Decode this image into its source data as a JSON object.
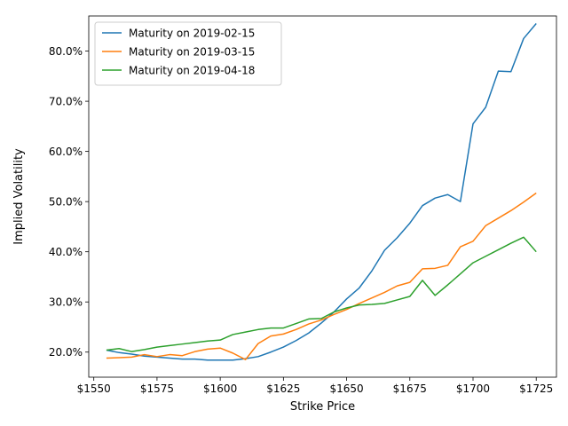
{
  "chart_data": {
    "type": "line",
    "title": "",
    "xlabel": "Strike Price",
    "ylabel": "Implied Volatility",
    "xlim": [
      1548,
      1733
    ],
    "ylim": [
      0.15,
      0.87
    ],
    "x_ticks": [
      1550,
      1575,
      1600,
      1625,
      1650,
      1675,
      1700,
      1725
    ],
    "x_tick_labels": [
      "$1550",
      "$1575",
      "$1600",
      "$1625",
      "$1650",
      "$1675",
      "$1700",
      "$1725"
    ],
    "y_ticks": [
      0.2,
      0.3,
      0.4,
      0.5,
      0.6,
      0.7,
      0.8
    ],
    "y_tick_labels": [
      "20.0%",
      "30.0%",
      "40.0%",
      "50.0%",
      "60.0%",
      "70.0%",
      "80.0%"
    ],
    "grid": false,
    "legend_position": "top-left",
    "series": [
      {
        "name": "Maturity on 2019-02-15",
        "color": "#1f77b4",
        "x": [
          1555,
          1560,
          1565,
          1570,
          1575,
          1580,
          1585,
          1590,
          1595,
          1600,
          1605,
          1610,
          1615,
          1620,
          1625,
          1630,
          1635,
          1640,
          1645,
          1650,
          1655,
          1660,
          1665,
          1670,
          1675,
          1680,
          1685,
          1690,
          1695,
          1700,
          1705,
          1710,
          1715,
          1720,
          1725
        ],
        "y": [
          0.204,
          0.199,
          0.196,
          0.192,
          0.19,
          0.188,
          0.186,
          0.186,
          0.184,
          0.184,
          0.184,
          0.187,
          0.191,
          0.2,
          0.21,
          0.223,
          0.238,
          0.258,
          0.28,
          0.306,
          0.328,
          0.362,
          0.403,
          0.428,
          0.457,
          0.492,
          0.507,
          0.514,
          0.5,
          0.655,
          0.688,
          0.76,
          0.759,
          0.825,
          0.855
        ]
      },
      {
        "name": "Maturity on 2019-03-15",
        "color": "#ff7f0e",
        "x": [
          1555,
          1560,
          1565,
          1570,
          1575,
          1580,
          1585,
          1590,
          1595,
          1600,
          1605,
          1610,
          1615,
          1620,
          1625,
          1630,
          1635,
          1640,
          1645,
          1650,
          1655,
          1660,
          1665,
          1670,
          1675,
          1680,
          1685,
          1690,
          1695,
          1700,
          1705,
          1710,
          1715,
          1720,
          1725
        ],
        "y": [
          0.188,
          0.189,
          0.19,
          0.195,
          0.191,
          0.195,
          0.193,
          0.201,
          0.206,
          0.208,
          0.198,
          0.185,
          0.217,
          0.232,
          0.236,
          0.245,
          0.256,
          0.264,
          0.275,
          0.285,
          0.297,
          0.308,
          0.319,
          0.332,
          0.339,
          0.366,
          0.367,
          0.373,
          0.41,
          0.421,
          0.452,
          0.467,
          0.482,
          0.499,
          0.517
        ]
      },
      {
        "name": "Maturity on 2019-04-18",
        "color": "#2ca02c",
        "x": [
          1555,
          1560,
          1565,
          1570,
          1575,
          1580,
          1585,
          1590,
          1595,
          1600,
          1605,
          1610,
          1615,
          1620,
          1625,
          1630,
          1635,
          1640,
          1645,
          1650,
          1655,
          1660,
          1665,
          1670,
          1675,
          1680,
          1685,
          1690,
          1695,
          1700,
          1705,
          1710,
          1715,
          1720,
          1725
        ],
        "y": [
          0.204,
          0.207,
          0.201,
          0.205,
          0.21,
          0.213,
          0.216,
          0.219,
          0.222,
          0.224,
          0.235,
          0.24,
          0.245,
          0.248,
          0.248,
          0.257,
          0.266,
          0.267,
          0.28,
          0.288,
          0.294,
          0.295,
          0.297,
          0.304,
          0.311,
          0.343,
          0.313,
          0.334,
          0.356,
          0.378,
          0.391,
          0.404,
          0.417,
          0.429,
          0.4
        ]
      }
    ]
  }
}
